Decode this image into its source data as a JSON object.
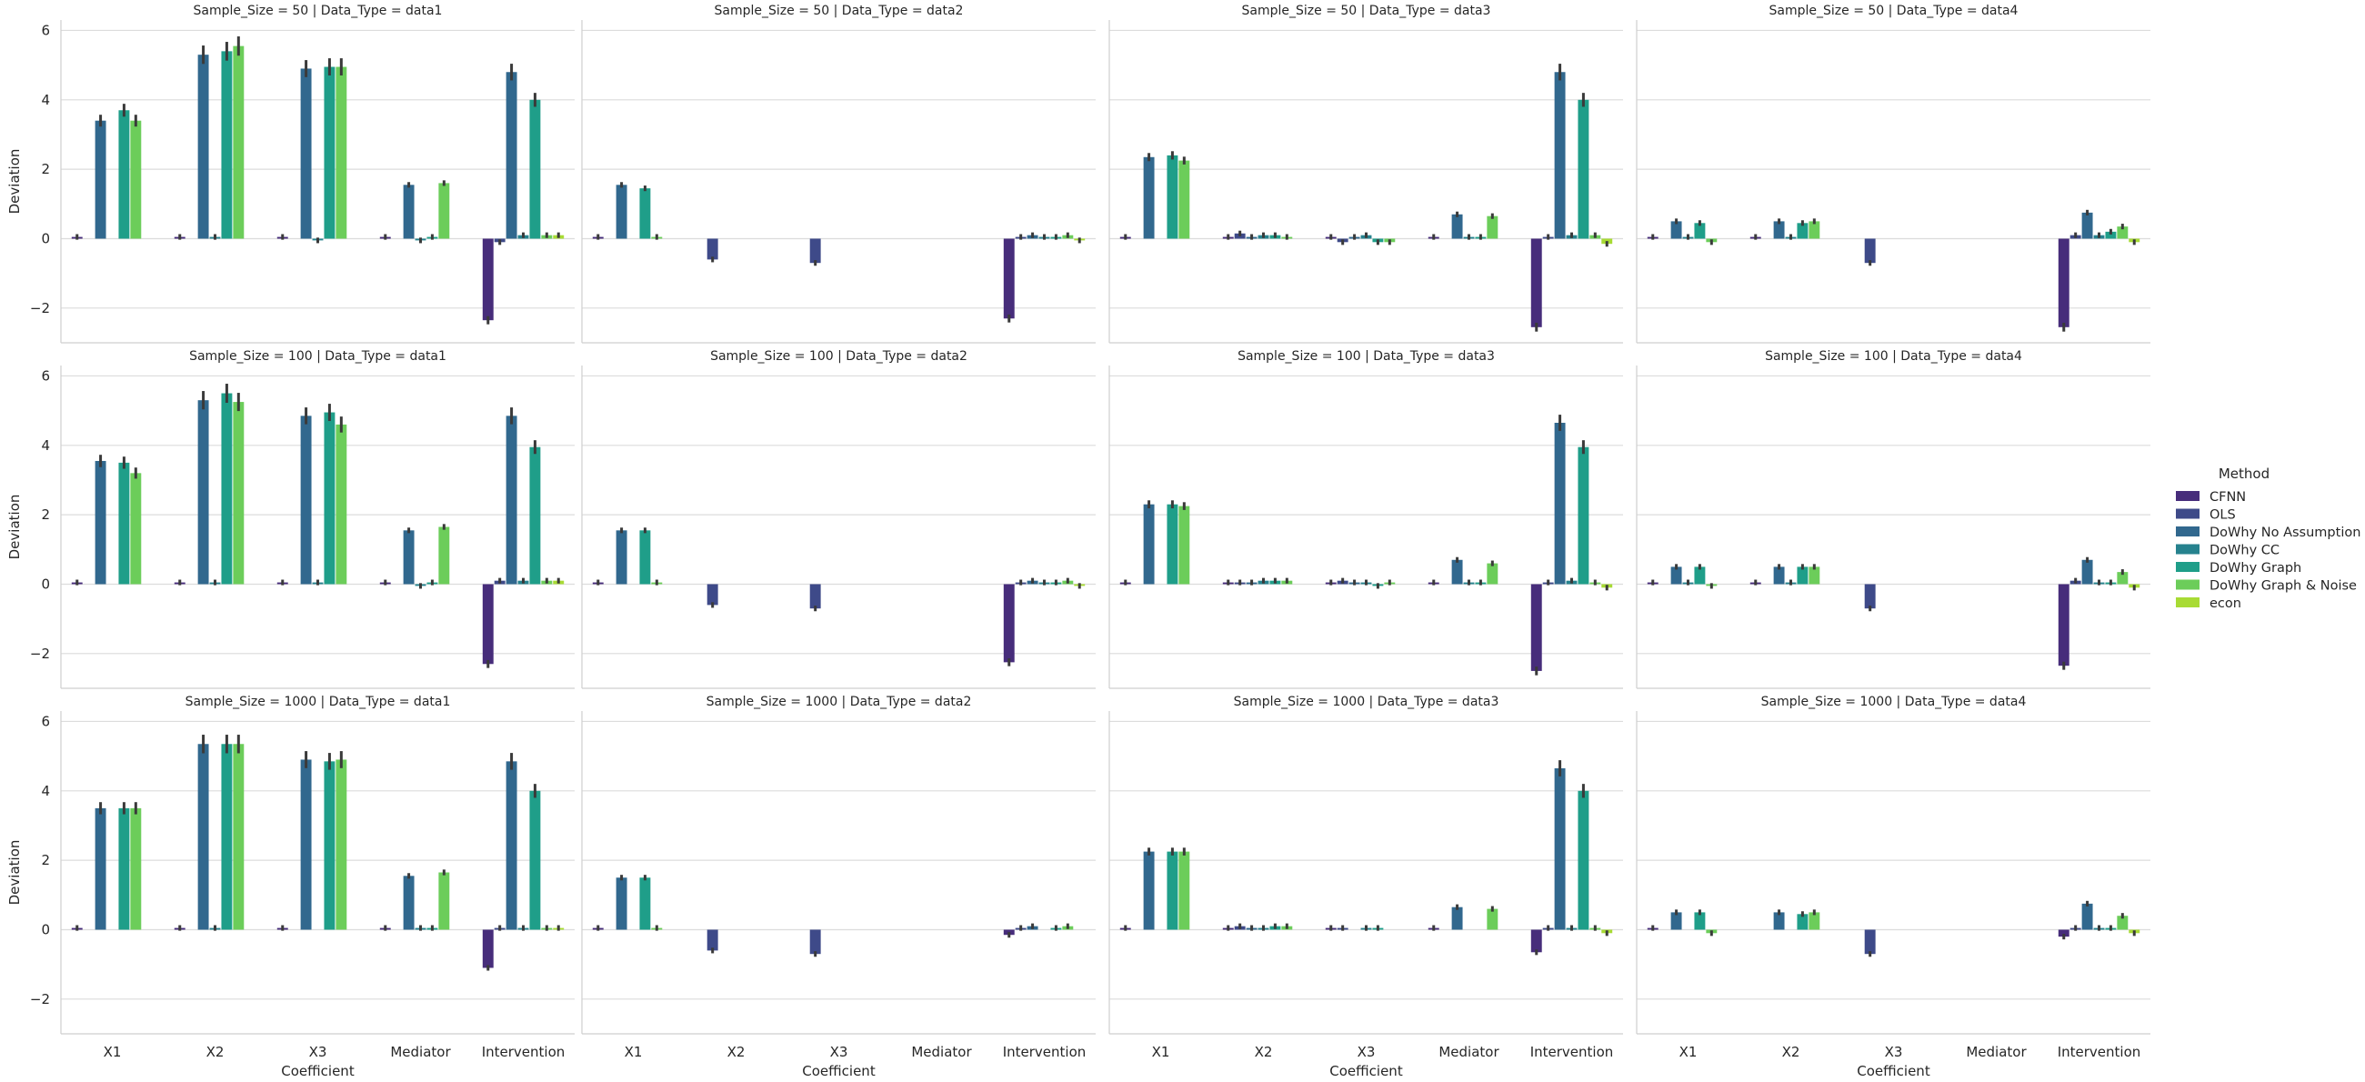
{
  "chart_data": {
    "type": "bar",
    "ylabel": "Deviation",
    "xlabel": "Coefficient",
    "ylim": [
      -3,
      6.3
    ],
    "yticks": [
      -2,
      0,
      2,
      4,
      6
    ],
    "categories": [
      "X1",
      "X2",
      "X3",
      "Mediator",
      "Intervention"
    ],
    "grid": "horizontal",
    "legend": {
      "title": "Method",
      "placement": "right",
      "entries": [
        {
          "name": "CFNN",
          "color": "#472d7b"
        },
        {
          "name": "OLS",
          "color": "#3e4a89"
        },
        {
          "name": "DoWhy No Assumption",
          "color": "#31688e"
        },
        {
          "name": "DoWhy CC",
          "color": "#26828e"
        },
        {
          "name": "DoWhy Graph",
          "color": "#1f9e89"
        },
        {
          "name": "DoWhy Graph & Noise",
          "color": "#6ccd5a"
        },
        {
          "name": "econ",
          "color": "#a8db34"
        }
      ]
    },
    "panels": [
      {
        "title": "Sample_Size = 50 | Data_Type = data1",
        "values": [
          [
            0.05,
            0,
            3.4,
            0,
            3.7,
            3.4,
            0
          ],
          [
            0.05,
            0,
            5.3,
            0.05,
            5.4,
            5.55,
            0
          ],
          [
            0.05,
            0,
            4.9,
            -0.05,
            4.95,
            4.95,
            0
          ],
          [
            0.05,
            0,
            1.55,
            -0.05,
            0.05,
            1.6,
            0
          ],
          [
            -2.35,
            -0.1,
            4.8,
            0.1,
            4.0,
            0.1,
            0.1
          ]
        ]
      },
      {
        "title": "Sample_Size = 50 | Data_Type = data2",
        "values": [
          [
            0.05,
            0,
            1.55,
            0,
            1.45,
            0.05,
            0
          ],
          [
            0,
            -0.6,
            0,
            0,
            0,
            0,
            0
          ],
          [
            0,
            -0.7,
            0,
            0,
            0,
            0,
            0
          ],
          [
            0,
            0,
            0,
            0,
            0,
            0,
            0
          ],
          [
            -2.3,
            0.05,
            0.1,
            0.05,
            0.05,
            0.1,
            -0.05
          ]
        ]
      },
      {
        "title": "Sample_Size = 50 | Data_Type = data3",
        "values": [
          [
            0.05,
            0,
            2.35,
            0,
            2.4,
            2.25,
            0
          ],
          [
            0.05,
            0.15,
            0.05,
            0.1,
            0.1,
            0.05,
            0
          ],
          [
            0.05,
            -0.1,
            0.05,
            0.1,
            -0.1,
            -0.1,
            0
          ],
          [
            0.05,
            0,
            0.7,
            0.05,
            0.05,
            0.65,
            0
          ],
          [
            -2.55,
            0.05,
            4.8,
            0.1,
            4.0,
            0.1,
            -0.15
          ]
        ]
      },
      {
        "title": "Sample_Size = 50 | Data_Type = data4",
        "values": [
          [
            0.05,
            0,
            0.5,
            0.05,
            0.45,
            -0.1,
            0
          ],
          [
            0.05,
            0,
            0.5,
            0.05,
            0.45,
            0.5,
            0
          ],
          [
            0,
            -0.7,
            0,
            0,
            0,
            0,
            0
          ],
          [
            0,
            0,
            0,
            0,
            0,
            0,
            0
          ],
          [
            -2.55,
            0.1,
            0.75,
            0.1,
            0.2,
            0.35,
            -0.1
          ]
        ]
      },
      {
        "title": "Sample_Size = 100 | Data_Type = data1",
        "values": [
          [
            0.05,
            0,
            3.55,
            0,
            3.5,
            3.2,
            0
          ],
          [
            0.05,
            0,
            5.3,
            0.05,
            5.5,
            5.25,
            0
          ],
          [
            0.05,
            0,
            4.85,
            0.05,
            4.95,
            4.6,
            0
          ],
          [
            0.05,
            0,
            1.55,
            -0.05,
            0.05,
            1.65,
            0
          ],
          [
            -2.3,
            0.1,
            4.85,
            0.1,
            3.95,
            0.1,
            0.1
          ]
        ]
      },
      {
        "title": "Sample_Size = 100 | Data_Type = data2",
        "values": [
          [
            0.05,
            0,
            1.55,
            0,
            1.55,
            0.05,
            0
          ],
          [
            0,
            -0.6,
            0,
            0,
            0,
            0,
            0
          ],
          [
            0,
            -0.7,
            0,
            0,
            0,
            0,
            0
          ],
          [
            0,
            0,
            0,
            0,
            0,
            0,
            0
          ],
          [
            -2.25,
            0.05,
            0.1,
            0.05,
            0.05,
            0.1,
            -0.05
          ]
        ]
      },
      {
        "title": "Sample_Size = 100 | Data_Type = data3",
        "values": [
          [
            0.05,
            0,
            2.3,
            0,
            2.3,
            2.25,
            0
          ],
          [
            0.05,
            0.05,
            0.05,
            0.1,
            0.1,
            0.1,
            0
          ],
          [
            0.05,
            0.1,
            0.05,
            0.05,
            -0.05,
            0.05,
            0
          ],
          [
            0.05,
            0,
            0.7,
            0.05,
            0.05,
            0.6,
            0
          ],
          [
            -2.5,
            0.05,
            4.65,
            0.1,
            3.95,
            0.05,
            -0.1
          ]
        ]
      },
      {
        "title": "Sample_Size = 100 | Data_Type = data4",
        "values": [
          [
            0.05,
            0,
            0.5,
            0.05,
            0.5,
            -0.05,
            0
          ],
          [
            0.05,
            0,
            0.5,
            0.05,
            0.5,
            0.5,
            0
          ],
          [
            0,
            -0.7,
            0,
            0,
            0,
            0,
            0
          ],
          [
            0,
            0,
            0,
            0,
            0,
            0,
            0
          ],
          [
            -2.35,
            0.1,
            0.7,
            0.05,
            0.05,
            0.35,
            -0.1
          ]
        ]
      },
      {
        "title": "Sample_Size = 1000 | Data_Type = data1",
        "values": [
          [
            0.05,
            0,
            3.5,
            0,
            3.5,
            3.5,
            0
          ],
          [
            0.05,
            0,
            5.35,
            0.05,
            5.35,
            5.35,
            0
          ],
          [
            0.05,
            0,
            4.9,
            0,
            4.85,
            4.9,
            0
          ],
          [
            0.05,
            0,
            1.55,
            0.05,
            0.05,
            1.65,
            0
          ],
          [
            -1.1,
            0.05,
            4.85,
            0.05,
            4.0,
            0.05,
            0.05
          ]
        ]
      },
      {
        "title": "Sample_Size = 1000 | Data_Type = data2",
        "values": [
          [
            0.05,
            0,
            1.5,
            0,
            1.5,
            0.05,
            0
          ],
          [
            0,
            -0.6,
            0,
            0,
            0,
            0,
            0
          ],
          [
            0,
            -0.7,
            0,
            0,
            0,
            0,
            0
          ],
          [
            0,
            0,
            0,
            0,
            0,
            0,
            0
          ],
          [
            -0.15,
            0.05,
            0.1,
            0,
            0.05,
            0.1,
            0
          ]
        ]
      },
      {
        "title": "Sample_Size = 1000 | Data_Type = data3",
        "values": [
          [
            0.05,
            0,
            2.25,
            0,
            2.25,
            2.25,
            0
          ],
          [
            0.05,
            0.1,
            0.05,
            0.05,
            0.1,
            0.1,
            0
          ],
          [
            0.05,
            0.05,
            0,
            0.05,
            0.05,
            0,
            0
          ],
          [
            0.05,
            0,
            0.65,
            0,
            0,
            0.6,
            0
          ],
          [
            -0.65,
            0.05,
            4.65,
            0.05,
            4.0,
            0.05,
            -0.1
          ]
        ]
      },
      {
        "title": "Sample_Size = 1000 | Data_Type = data4",
        "values": [
          [
            0.05,
            0,
            0.5,
            0,
            0.5,
            -0.1,
            0
          ],
          [
            0,
            0,
            0.5,
            0,
            0.45,
            0.5,
            0
          ],
          [
            0,
            -0.7,
            0,
            0,
            0,
            0,
            0
          ],
          [
            0,
            0,
            0,
            0,
            0,
            0,
            0
          ],
          [
            -0.2,
            0.05,
            0.75,
            0.05,
            0.05,
            0.4,
            -0.1
          ]
        ]
      }
    ]
  }
}
